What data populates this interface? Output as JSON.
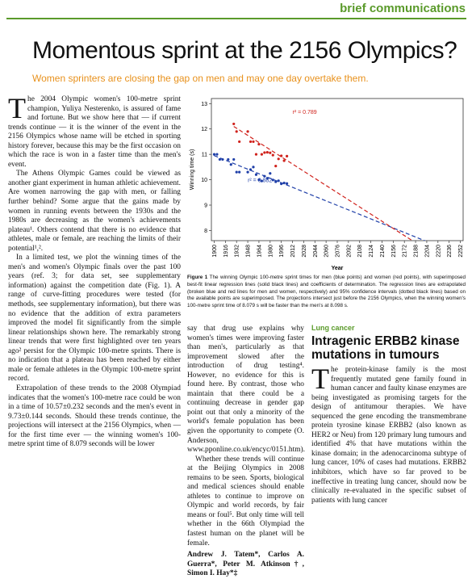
{
  "header": "brief communications",
  "title": "Momentous sprint at the 2156 Olympics?",
  "subtitle": "Women sprinters are closing the gap on men and may one day overtake them.",
  "left_column": [
    "The 2004 Olympic women's 100-metre sprint champion, Yuliya Nesterenko, is assured of fame and fortune. But we show here that — if current trends continue — it is the winner of the event in the 2156 Olympics whose name will be etched in sporting history forever, because this may be the first occasion on which the race is won in a faster time than the men's event.",
    "The Athens Olympic Games could be viewed as another giant experiment in human athletic achievement. Are women narrowing the gap with men, or falling further behind? Some argue that the gains made by women in running events between the 1930s and the 1980s are decreasing as the women's achievements plateau¹. Others contend that there is no evidence that athletes, male or female, are reaching the limits of their potential¹,².",
    "In a limited test, we plot the winning times of the men's and women's Olympic finals over the past 100 years (ref. 3; for data set, see supplementary information) against the competition date (Fig. 1). A range of curve-fitting procedures were tested (for methods, see supplementary information), but there was no evidence that the addition of extra parameters improved the model fit significantly from the simple linear relationships shown here. The remarkably strong linear trends that were first highlighted over ten years ago² persist for the Olympic 100-metre sprints. There is no indication that a plateau has been reached by either male or female athletes in the Olympic 100-metre sprint record.",
    "Extrapolation of these trends to the 2008 Olympiad indicates that the women's 100-metre race could be won in a time of 10.57±0.232 seconds and the men's event in 9.73±0.144 seconds. Should these trends continue, the projections will intersect at the 2156 Olympics, when — for the first time ever — the winning women's 100-metre sprint time of 8.079 seconds will be lower"
  ],
  "middle_column": [
    "say that drug use explains why women's times were improving faster than men's, particularly as that improvement slowed after the introduction of drug testing⁴. However, no evidence for this is found here. By contrast, those who maintain that there could be a continuing decrease in gender gap point out that only a minority of the world's female population has been given the opportunity to compete (O. Anderson, www.pponline.co.uk/encyc/0151.htm).",
    "Whether these trends will continue at the Beijing Olympics in 2008 remains to be seen. Sports, biological and medical sciences should enable athletes to continue to improve on Olympic and world records, by fair means or foul⁵. But only time will tell whether in the 66th Olympiad the fastest human on the planet will be female."
  ],
  "authors": "Andrew J. Tatem*, Carlos A. Guerra*, Peter M. Atkinson†, Simon I. Hay*‡",
  "caption": {
    "label": "Figure 1",
    "text": "The winning Olympic 100-metre sprint times for men (blue points) and women (red points), with superimposed best-fit linear regression lines (solid black lines) and coefficients of determination. The regression lines are extrapolated (broken blue and red lines for men and women, respectively) and 95% confidence intervals (dotted black lines) based on the available points are superimposed. The projections intersect just before the 2156 Olympics, when the winning women's 100-metre sprint time of 8.079 s will be faster than the men's at 8.098 s."
  },
  "right_section": "Lung cancer",
  "right_title": "Intragenic ERBB2 kinase mutations in tumours",
  "right_column": "The protein-kinase family is the most frequently mutated gene family found in human cancer and faulty kinase enzymes are being investigated as promising targets for the design of antitumour therapies. We have sequenced the gene encoding the transmembrane protein tyrosine kinase ERBB2 (also known as HER2 or Neu) from 120 primary lung tumours and identified 4% that have mutations within the kinase domain; in the adenocarcinoma subtype of lung cancer, 10% of cases had mutations. ERBB2 inhibitors, which have so far proved to be ineffective in treating lung cancer, should now be clinically re-evaluated in the specific subset of patients with lung cancer",
  "chart_data": {
    "type": "scatter",
    "xlabel": "Year",
    "ylabel": "Winning time (s)",
    "xlim": [
      1896,
      2256
    ],
    "ylim": [
      7.6,
      13.2
    ],
    "yticks": [
      8,
      9,
      10,
      11,
      12,
      13
    ],
    "xticks": [
      1900,
      1916,
      1932,
      1948,
      1964,
      1980,
      1996,
      2012,
      2028,
      2044,
      2060,
      2076,
      2092,
      2108,
      2124,
      2140,
      2156,
      2172,
      2188,
      2204,
      2220,
      2236,
      2252
    ],
    "series": [
      {
        "color": "#1f3fa8",
        "x": [
          1900,
          1904,
          1908,
          1912,
          1920,
          1924,
          1928,
          1932,
          1936,
          1948,
          1952,
          1956,
          1960,
          1964,
          1968,
          1972,
          1976,
          1980,
          1984,
          1988,
          1992,
          1996,
          2000,
          2004
        ],
        "values": [
          11.0,
          11.0,
          10.8,
          10.8,
          10.8,
          10.6,
          10.8,
          10.3,
          10.3,
          10.3,
          10.4,
          10.5,
          10.2,
          10.0,
          9.95,
          10.14,
          10.06,
          10.25,
          9.99,
          9.92,
          9.96,
          9.84,
          9.87,
          9.85
        ]
      },
      {
        "color": "#d0221c",
        "x": [
          1928,
          1932,
          1936,
          1948,
          1952,
          1956,
          1960,
          1964,
          1968,
          1972,
          1976,
          1980,
          1984,
          1988,
          1992,
          1996,
          2000,
          2004
        ],
        "values": [
          12.2,
          11.9,
          11.5,
          11.9,
          11.5,
          11.5,
          11.0,
          11.4,
          11.0,
          11.07,
          11.08,
          11.06,
          10.97,
          10.54,
          10.82,
          10.94,
          10.75,
          10.93
        ]
      }
    ],
    "trend_lines": [
      {
        "color": "#1f3fa8",
        "x": [
          1900,
          2252
        ],
        "values": [
          10.95,
          7.03
        ]
      },
      {
        "color": "#d0221c",
        "x": [
          1928,
          2252
        ],
        "values": [
          12.1,
          6.39
        ]
      }
    ],
    "annotations": [
      {
        "text": "r² = 0.789",
        "color": "#d0221c",
        "x": 2012,
        "y": 12.6
      },
      {
        "text": "r² = 0.882",
        "color": "#1f3fa8",
        "x": 1948,
        "y": 9.9
      }
    ]
  }
}
